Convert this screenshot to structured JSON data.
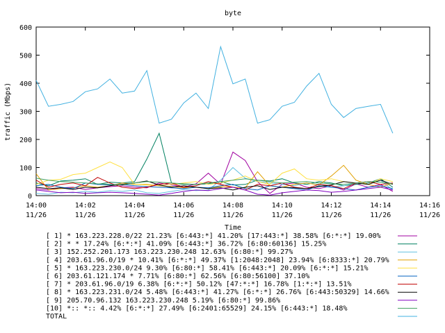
{
  "chart_data": {
    "type": "line",
    "title": "byte",
    "xlabel": "Time",
    "ylabel": "traffic (Mbps)",
    "ylim": [
      0,
      600
    ],
    "yticks": [
      0,
      100,
      200,
      300,
      400,
      500,
      600
    ],
    "x_range": [
      "14:00",
      "14:16"
    ],
    "xticks": [
      {
        "time": "14:00",
        "date": "11/26"
      },
      {
        "time": "14:02",
        "date": "11/26"
      },
      {
        "time": "14:04",
        "date": "11/26"
      },
      {
        "time": "14:06",
        "date": "11/26"
      },
      {
        "time": "14:08",
        "date": "11/26"
      },
      {
        "time": "14:10",
        "date": "11/26"
      },
      {
        "time": "14:12",
        "date": "11/26"
      },
      {
        "time": "14:14",
        "date": "11/26"
      },
      {
        "time": "14:16",
        "date": "11/26"
      }
    ],
    "x": [
      "14:00:00",
      "14:00:30",
      "14:01:00",
      "14:01:30",
      "14:02:00",
      "14:02:30",
      "14:03:00",
      "14:03:30",
      "14:04:00",
      "14:04:30",
      "14:05:00",
      "14:05:30",
      "14:06:00",
      "14:06:30",
      "14:07:00",
      "14:07:30",
      "14:08:00",
      "14:08:30",
      "14:09:00",
      "14:09:30",
      "14:10:00",
      "14:10:30",
      "14:11:00",
      "14:11:30",
      "14:12:00",
      "14:12:30",
      "14:13:00",
      "14:13:30",
      "14:14:00",
      "14:14:30"
    ],
    "grid": false,
    "legend_position": "below",
    "series": [
      {
        "name": "[ 1] * 163.223.228.0/22 21.23%  [6:443:*] 41.20% [17:443:*] 38.58% [6:*:*] 19.00%",
        "color": "#a000a0",
        "values": [
          25,
          20,
          28,
          30,
          22,
          28,
          32,
          35,
          30,
          28,
          45,
          38,
          30,
          42,
          80,
          40,
          155,
          125,
          50,
          8,
          40,
          45,
          30,
          25,
          35,
          20,
          42,
          30,
          40,
          15
        ]
      },
      {
        "name": "[ 2] * * 17.24%  [6:*:*] 41.09% [6:443:*] 36.72% [6:80:60136] 15.25%",
        "color": "#008060",
        "values": [
          45,
          35,
          52,
          55,
          60,
          40,
          48,
          45,
          50,
          130,
          222,
          45,
          40,
          40,
          42,
          50,
          38,
          40,
          55,
          52,
          60,
          45,
          40,
          50,
          45,
          35,
          40,
          45,
          60,
          30
        ]
      },
      {
        "name": "[ 3] 152.252.201.173 163.223.230.248 12.63%  [6:80:*] 99.27%",
        "color": "#60c0e0",
        "values": [
          8,
          5,
          12,
          10,
          15,
          12,
          18,
          15,
          20,
          10,
          8,
          15,
          22,
          18,
          20,
          55,
          100,
          62,
          50,
          45,
          40,
          35,
          45,
          40,
          30,
          35,
          45,
          40,
          55,
          20
        ]
      },
      {
        "name": "[ 4] 203.61.96.0/19 * 10.41%  [6:*:*] 49.37% [1:2048:2048] 23.94% [6:8333:*] 20.79%",
        "color": "#e0a000",
        "values": [
          78,
          20,
          25,
          28,
          35,
          30,
          35,
          45,
          40,
          40,
          35,
          32,
          28,
          30,
          25,
          32,
          30,
          28,
          85,
          35,
          30,
          40,
          45,
          38,
          70,
          108,
          55,
          40,
          30,
          45
        ]
      },
      {
        "name": "[ 5] * 163.223.230.0/24 9.30%  [6:80:*] 58.41% [6:443:*] 20.09% [6:*:*] 15.21%",
        "color": "#ffe040",
        "values": [
          40,
          55,
          58,
          75,
          80,
          100,
          120,
          100,
          40,
          38,
          35,
          40,
          45,
          50,
          40,
          45,
          55,
          70,
          50,
          40,
          80,
          95,
          60,
          55,
          60,
          50,
          45,
          40,
          60,
          50
        ]
      },
      {
        "name": "[ 6] 203.61.121.174 * 7.71%  [6:80:*] 62.56% [6:80:56100] 37.10%",
        "color": "#0060c0",
        "values": [
          35,
          40,
          30,
          25,
          45,
          40,
          38,
          40,
          35,
          32,
          30,
          28,
          25,
          30,
          28,
          35,
          40,
          25,
          20,
          35,
          30,
          25,
          20,
          35,
          30,
          25,
          20,
          30,
          35,
          25
        ]
      },
      {
        "name": "[ 7] * 203.61.96.0/19 6.38%  [6:*:*] 50.12% [47:*:*] 16.78% [1:*:*] 13.51%",
        "color": "#c00000",
        "values": [
          55,
          30,
          40,
          45,
          35,
          65,
          45,
          30,
          25,
          30,
          40,
          45,
          30,
          35,
          50,
          40,
          30,
          20,
          40,
          35,
          45,
          30,
          25,
          40,
          35,
          25,
          45,
          50,
          40,
          45
        ]
      },
      {
        "name": "[ 8] * 163.223.231.0/24 5.48%  [6:443:*] 41.27% [6:*:*] 26.76% [6:443:50329] 14.66%",
        "color": "#000000",
        "values": [
          30,
          25,
          28,
          22,
          30,
          28,
          35,
          40,
          45,
          52,
          38,
          30,
          35,
          30,
          25,
          28,
          20,
          30,
          35,
          22,
          30,
          28,
          25,
          32,
          38,
          50,
          45,
          40,
          55,
          40
        ]
      },
      {
        "name": "[ 9] 205.70.96.132 163.223.230.248 5.19%  [6:80:*] 99.86%",
        "color": "#8000c0",
        "values": [
          20,
          15,
          10,
          12,
          8,
          10,
          12,
          10,
          8,
          5,
          2,
          8,
          15,
          20,
          18,
          25,
          30,
          20,
          5,
          2,
          10,
          15,
          20,
          18,
          12,
          15,
          20,
          25,
          30,
          20
        ]
      },
      {
        "name": "[10] *:: *:: 4.42%  [6:*:*] 27.49% [6:2401:65529] 24.15% [6:443:*] 18.48%",
        "color": "#40a060",
        "values": [
          62,
          55,
          50,
          48,
          45,
          42,
          40,
          38,
          45,
          50,
          48,
          45,
          42,
          40,
          45,
          50,
          55,
          60,
          55,
          50,
          45,
          48,
          50,
          45,
          42,
          40,
          45,
          50,
          48,
          42
        ]
      },
      {
        "name": "TOTAL",
        "color": "#40b0e0",
        "values": [
          410,
          318,
          325,
          335,
          370,
          380,
          415,
          365,
          372,
          445,
          258,
          272,
          330,
          365,
          310,
          530,
          398,
          415,
          258,
          270,
          318,
          332,
          390,
          435,
          325,
          278,
          310,
          318,
          325,
          222
        ]
      }
    ]
  }
}
